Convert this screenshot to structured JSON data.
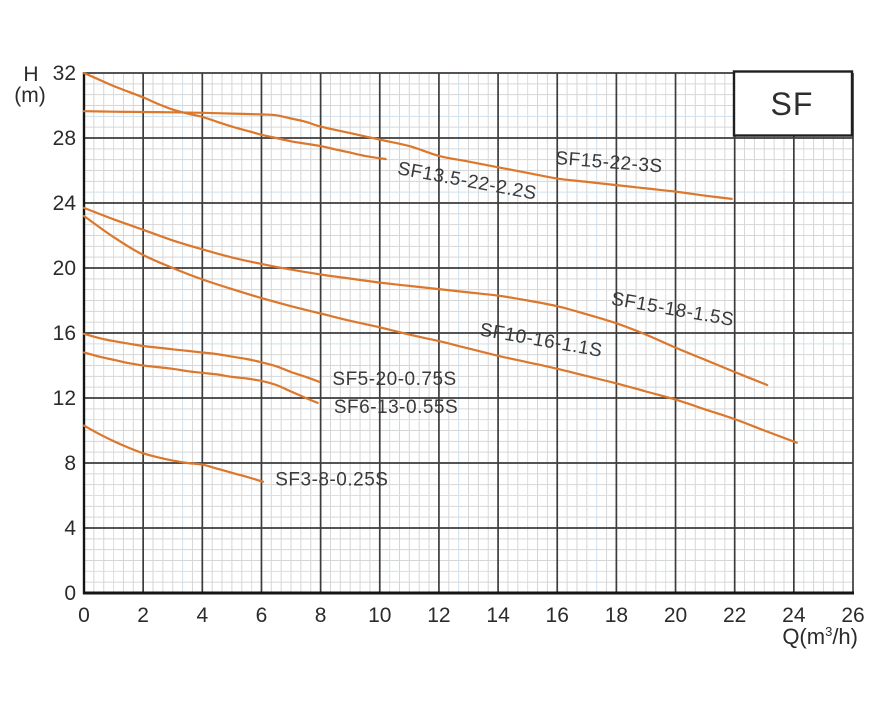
{
  "legend": {
    "label": "SF",
    "position": "top-right",
    "border_color": "#1f1f1f",
    "fill": "#ffffff"
  },
  "axes": {
    "y_title_lines": [
      "H",
      "(m)"
    ],
    "x_title": {
      "prefix": "Q(m",
      "sup": "3",
      "suffix": "/h)"
    }
  },
  "colors": {
    "curve": "#DC772C",
    "major_grid": "#3c3c3c",
    "minor_grid": "#d6d6d6",
    "minor_grid_blue": "#cfe2ee",
    "spine": "#141414",
    "text": "#2b2b2b",
    "curve_label": "#3a3a3a"
  },
  "chart_data": {
    "type": "line",
    "title": "",
    "xlabel": "Q(m3/h)",
    "ylabel": "H(m)",
    "xlim": [
      0,
      26
    ],
    "ylim": [
      0,
      32
    ],
    "x_ticks": [
      0,
      2,
      4,
      6,
      8,
      10,
      12,
      14,
      16,
      18,
      20,
      22,
      24,
      26
    ],
    "y_ticks": [
      0,
      4,
      8,
      12,
      16,
      20,
      24,
      28,
      32
    ],
    "grid": "major dark + fine minor graph-paper grid (6 subdivisions per major cell)",
    "legend_position": "top-right boxed label",
    "series": [
      {
        "name": "SF13.5-22-2.2S",
        "points": [
          [
            0,
            32.0
          ],
          [
            0.5,
            31.6
          ],
          [
            1,
            31.2
          ],
          [
            1.5,
            30.85
          ],
          [
            2,
            30.5
          ],
          [
            2.5,
            30.1
          ],
          [
            3,
            29.75
          ],
          [
            3.5,
            29.5
          ],
          [
            4,
            29.3
          ],
          [
            4.5,
            29.0
          ],
          [
            5,
            28.7
          ],
          [
            5.5,
            28.45
          ],
          [
            6,
            28.2
          ],
          [
            6.5,
            28.0
          ],
          [
            7,
            27.8
          ],
          [
            7.5,
            27.65
          ],
          [
            8,
            27.5
          ],
          [
            8.5,
            27.3
          ],
          [
            9,
            27.1
          ],
          [
            9.5,
            26.9
          ],
          [
            10.2,
            26.7
          ]
        ],
        "label": {
          "q": 12.95,
          "h": 25.3,
          "rotation": 10.5
        }
      },
      {
        "name": "SF15-22-3S",
        "points": [
          [
            0,
            29.65
          ],
          [
            1,
            29.62
          ],
          [
            2,
            29.6
          ],
          [
            3,
            29.58
          ],
          [
            4,
            29.55
          ],
          [
            5,
            29.5
          ],
          [
            6,
            29.45
          ],
          [
            6.5,
            29.4
          ],
          [
            7,
            29.2
          ],
          [
            7.5,
            29.0
          ],
          [
            8,
            28.7
          ],
          [
            9,
            28.3
          ],
          [
            10,
            27.9
          ],
          [
            11,
            27.5
          ],
          [
            12,
            26.9
          ],
          [
            13,
            26.55
          ],
          [
            14,
            26.2
          ],
          [
            15,
            25.85
          ],
          [
            16,
            25.5
          ],
          [
            17,
            25.3
          ],
          [
            18,
            25.1
          ],
          [
            19,
            24.9
          ],
          [
            20,
            24.7
          ],
          [
            21,
            24.45
          ],
          [
            21.9,
            24.25
          ]
        ],
        "label": {
          "q": 17.75,
          "h": 26.45,
          "rotation": 4.5
        }
      },
      {
        "name": "SF15-18-1.5S",
        "points": [
          [
            0,
            23.7
          ],
          [
            1,
            23.0
          ],
          [
            2,
            22.35
          ],
          [
            3,
            21.7
          ],
          [
            4,
            21.15
          ],
          [
            5,
            20.65
          ],
          [
            6,
            20.25
          ],
          [
            7,
            19.9
          ],
          [
            8,
            19.6
          ],
          [
            9,
            19.35
          ],
          [
            10,
            19.1
          ],
          [
            11,
            18.9
          ],
          [
            12,
            18.7
          ],
          [
            13,
            18.5
          ],
          [
            14,
            18.3
          ],
          [
            15,
            18.0
          ],
          [
            16,
            17.65
          ],
          [
            17,
            17.15
          ],
          [
            18,
            16.6
          ],
          [
            19,
            15.9
          ],
          [
            20,
            15.1
          ],
          [
            21,
            14.35
          ],
          [
            22,
            13.6
          ],
          [
            23.1,
            12.8
          ]
        ],
        "label": {
          "q": 19.9,
          "h": 17.4,
          "rotation": 10
        }
      },
      {
        "name": "SF10-16-1.1S",
        "points": [
          [
            0,
            23.2
          ],
          [
            1,
            21.9
          ],
          [
            2,
            20.8
          ],
          [
            3,
            20.0
          ],
          [
            4,
            19.3
          ],
          [
            5,
            18.7
          ],
          [
            6,
            18.15
          ],
          [
            7,
            17.65
          ],
          [
            8,
            17.2
          ],
          [
            9,
            16.75
          ],
          [
            10,
            16.35
          ],
          [
            11,
            15.9
          ],
          [
            12,
            15.5
          ],
          [
            13,
            15.05
          ],
          [
            14,
            14.6
          ],
          [
            15,
            14.2
          ],
          [
            16,
            13.8
          ],
          [
            17,
            13.35
          ],
          [
            18,
            12.9
          ],
          [
            19,
            12.4
          ],
          [
            20,
            11.9
          ],
          [
            21,
            11.3
          ],
          [
            22,
            10.7
          ],
          [
            23,
            10.0
          ],
          [
            24.1,
            9.25
          ]
        ],
        "label": {
          "q": 15.45,
          "h": 15.5,
          "rotation": 10
        }
      },
      {
        "name": "SF5-20-0.75S",
        "points": [
          [
            0,
            15.95
          ],
          [
            0.5,
            15.7
          ],
          [
            1,
            15.5
          ],
          [
            1.5,
            15.35
          ],
          [
            2,
            15.2
          ],
          [
            2.5,
            15.1
          ],
          [
            3,
            15.0
          ],
          [
            3.5,
            14.9
          ],
          [
            4,
            14.8
          ],
          [
            4.5,
            14.7
          ],
          [
            5,
            14.55
          ],
          [
            5.5,
            14.4
          ],
          [
            6,
            14.2
          ],
          [
            6.5,
            13.95
          ],
          [
            7,
            13.6
          ],
          [
            7.5,
            13.3
          ],
          [
            7.95,
            13.0
          ]
        ],
        "label": {
          "q": 10.5,
          "h": 13.1,
          "rotation": 0
        }
      },
      {
        "name": "SF6-13-0.55S",
        "points": [
          [
            0,
            14.8
          ],
          [
            0.5,
            14.55
          ],
          [
            1,
            14.35
          ],
          [
            1.5,
            14.15
          ],
          [
            2,
            14.0
          ],
          [
            2.5,
            13.9
          ],
          [
            3,
            13.8
          ],
          [
            3.5,
            13.65
          ],
          [
            4,
            13.55
          ],
          [
            4.5,
            13.45
          ],
          [
            5,
            13.3
          ],
          [
            5.5,
            13.2
          ],
          [
            6,
            13.05
          ],
          [
            6.5,
            12.8
          ],
          [
            7,
            12.4
          ],
          [
            7.5,
            12.0
          ],
          [
            7.9,
            11.7
          ]
        ],
        "label": {
          "q": 10.55,
          "h": 11.4,
          "rotation": 0
        }
      },
      {
        "name": "SF3-8-0.25S",
        "points": [
          [
            0,
            10.3
          ],
          [
            0.5,
            9.8
          ],
          [
            1,
            9.35
          ],
          [
            1.5,
            8.95
          ],
          [
            2,
            8.6
          ],
          [
            2.5,
            8.35
          ],
          [
            3,
            8.15
          ],
          [
            3.5,
            8.0
          ],
          [
            4,
            7.9
          ],
          [
            4.5,
            7.65
          ],
          [
            5,
            7.4
          ],
          [
            5.5,
            7.15
          ],
          [
            6.05,
            6.85
          ]
        ],
        "label": {
          "q": 8.38,
          "h": 6.92,
          "rotation": 0
        }
      }
    ]
  }
}
